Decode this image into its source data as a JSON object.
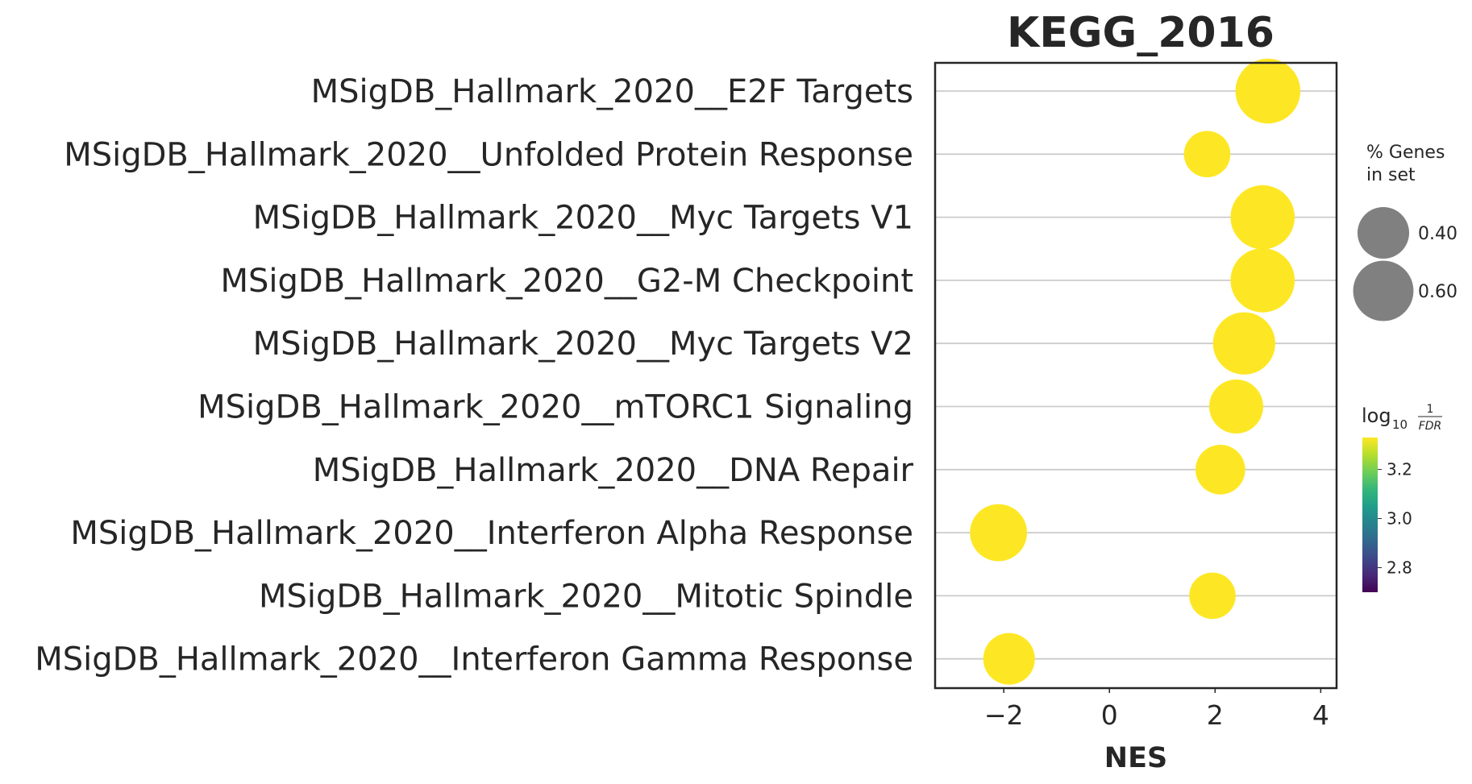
{
  "chart_data": {
    "type": "scatter",
    "title": "KEGG_2016",
    "xlabel": "NES",
    "ylabel": "",
    "xlim": [
      -3.3,
      4.3
    ],
    "xticks": [
      -2,
      0,
      2,
      4
    ],
    "xtick_labels": [
      "−2",
      "0",
      "2",
      "4"
    ],
    "grid": "horizontal",
    "categories": [
      "MSigDB_Hallmark_2020__E2F Targets",
      "MSigDB_Hallmark_2020__Unfolded Protein Response",
      "MSigDB_Hallmark_2020__Myc Targets V1",
      "MSigDB_Hallmark_2020__G2-M Checkpoint",
      "MSigDB_Hallmark_2020__Myc Targets V2",
      "MSigDB_Hallmark_2020__mTORC1 Signaling",
      "MSigDB_Hallmark_2020__DNA Repair",
      "MSigDB_Hallmark_2020__Interferon Alpha Response",
      "MSigDB_Hallmark_2020__Mitotic Spindle",
      "MSigDB_Hallmark_2020__Interferon Gamma Response"
    ],
    "points": [
      {
        "nes": 3.0,
        "pct_genes": 0.72,
        "log10_inv_fdr": 3.33
      },
      {
        "nes": 1.85,
        "pct_genes": 0.3,
        "log10_inv_fdr": 3.33
      },
      {
        "nes": 2.9,
        "pct_genes": 0.7,
        "log10_inv_fdr": 3.33
      },
      {
        "nes": 2.9,
        "pct_genes": 0.7,
        "log10_inv_fdr": 3.33
      },
      {
        "nes": 2.55,
        "pct_genes": 0.65,
        "log10_inv_fdr": 3.33
      },
      {
        "nes": 2.4,
        "pct_genes": 0.45,
        "log10_inv_fdr": 3.33
      },
      {
        "nes": 2.1,
        "pct_genes": 0.36,
        "log10_inv_fdr": 3.33
      },
      {
        "nes": -2.1,
        "pct_genes": 0.52,
        "log10_inv_fdr": 3.33
      },
      {
        "nes": 1.95,
        "pct_genes": 0.3,
        "log10_inv_fdr": 3.33
      },
      {
        "nes": -1.9,
        "pct_genes": 0.4,
        "log10_inv_fdr": 3.33
      }
    ],
    "point_color": "#fde725",
    "size_legend": {
      "title_line1": "% Genes",
      "title_line2": "in set",
      "entries": [
        {
          "label": "0.40",
          "value": 0.4
        },
        {
          "label": "0.60",
          "value": 0.6
        }
      ],
      "marker_color": "#808080"
    },
    "colorbar": {
      "title_main": "log",
      "title_sub": "10",
      "title_num": "1",
      "title_den": "FDR",
      "range": [
        2.7,
        3.33
      ],
      "ticks": [
        2.8,
        3.0,
        3.2
      ],
      "tick_labels": [
        "2.8",
        "3.0",
        "3.2"
      ],
      "colors": [
        "#440154",
        "#482878",
        "#3e4989",
        "#31688e",
        "#26828e",
        "#1f9e89",
        "#35b779",
        "#6ece58",
        "#b5de2b",
        "#fde725"
      ]
    }
  }
}
